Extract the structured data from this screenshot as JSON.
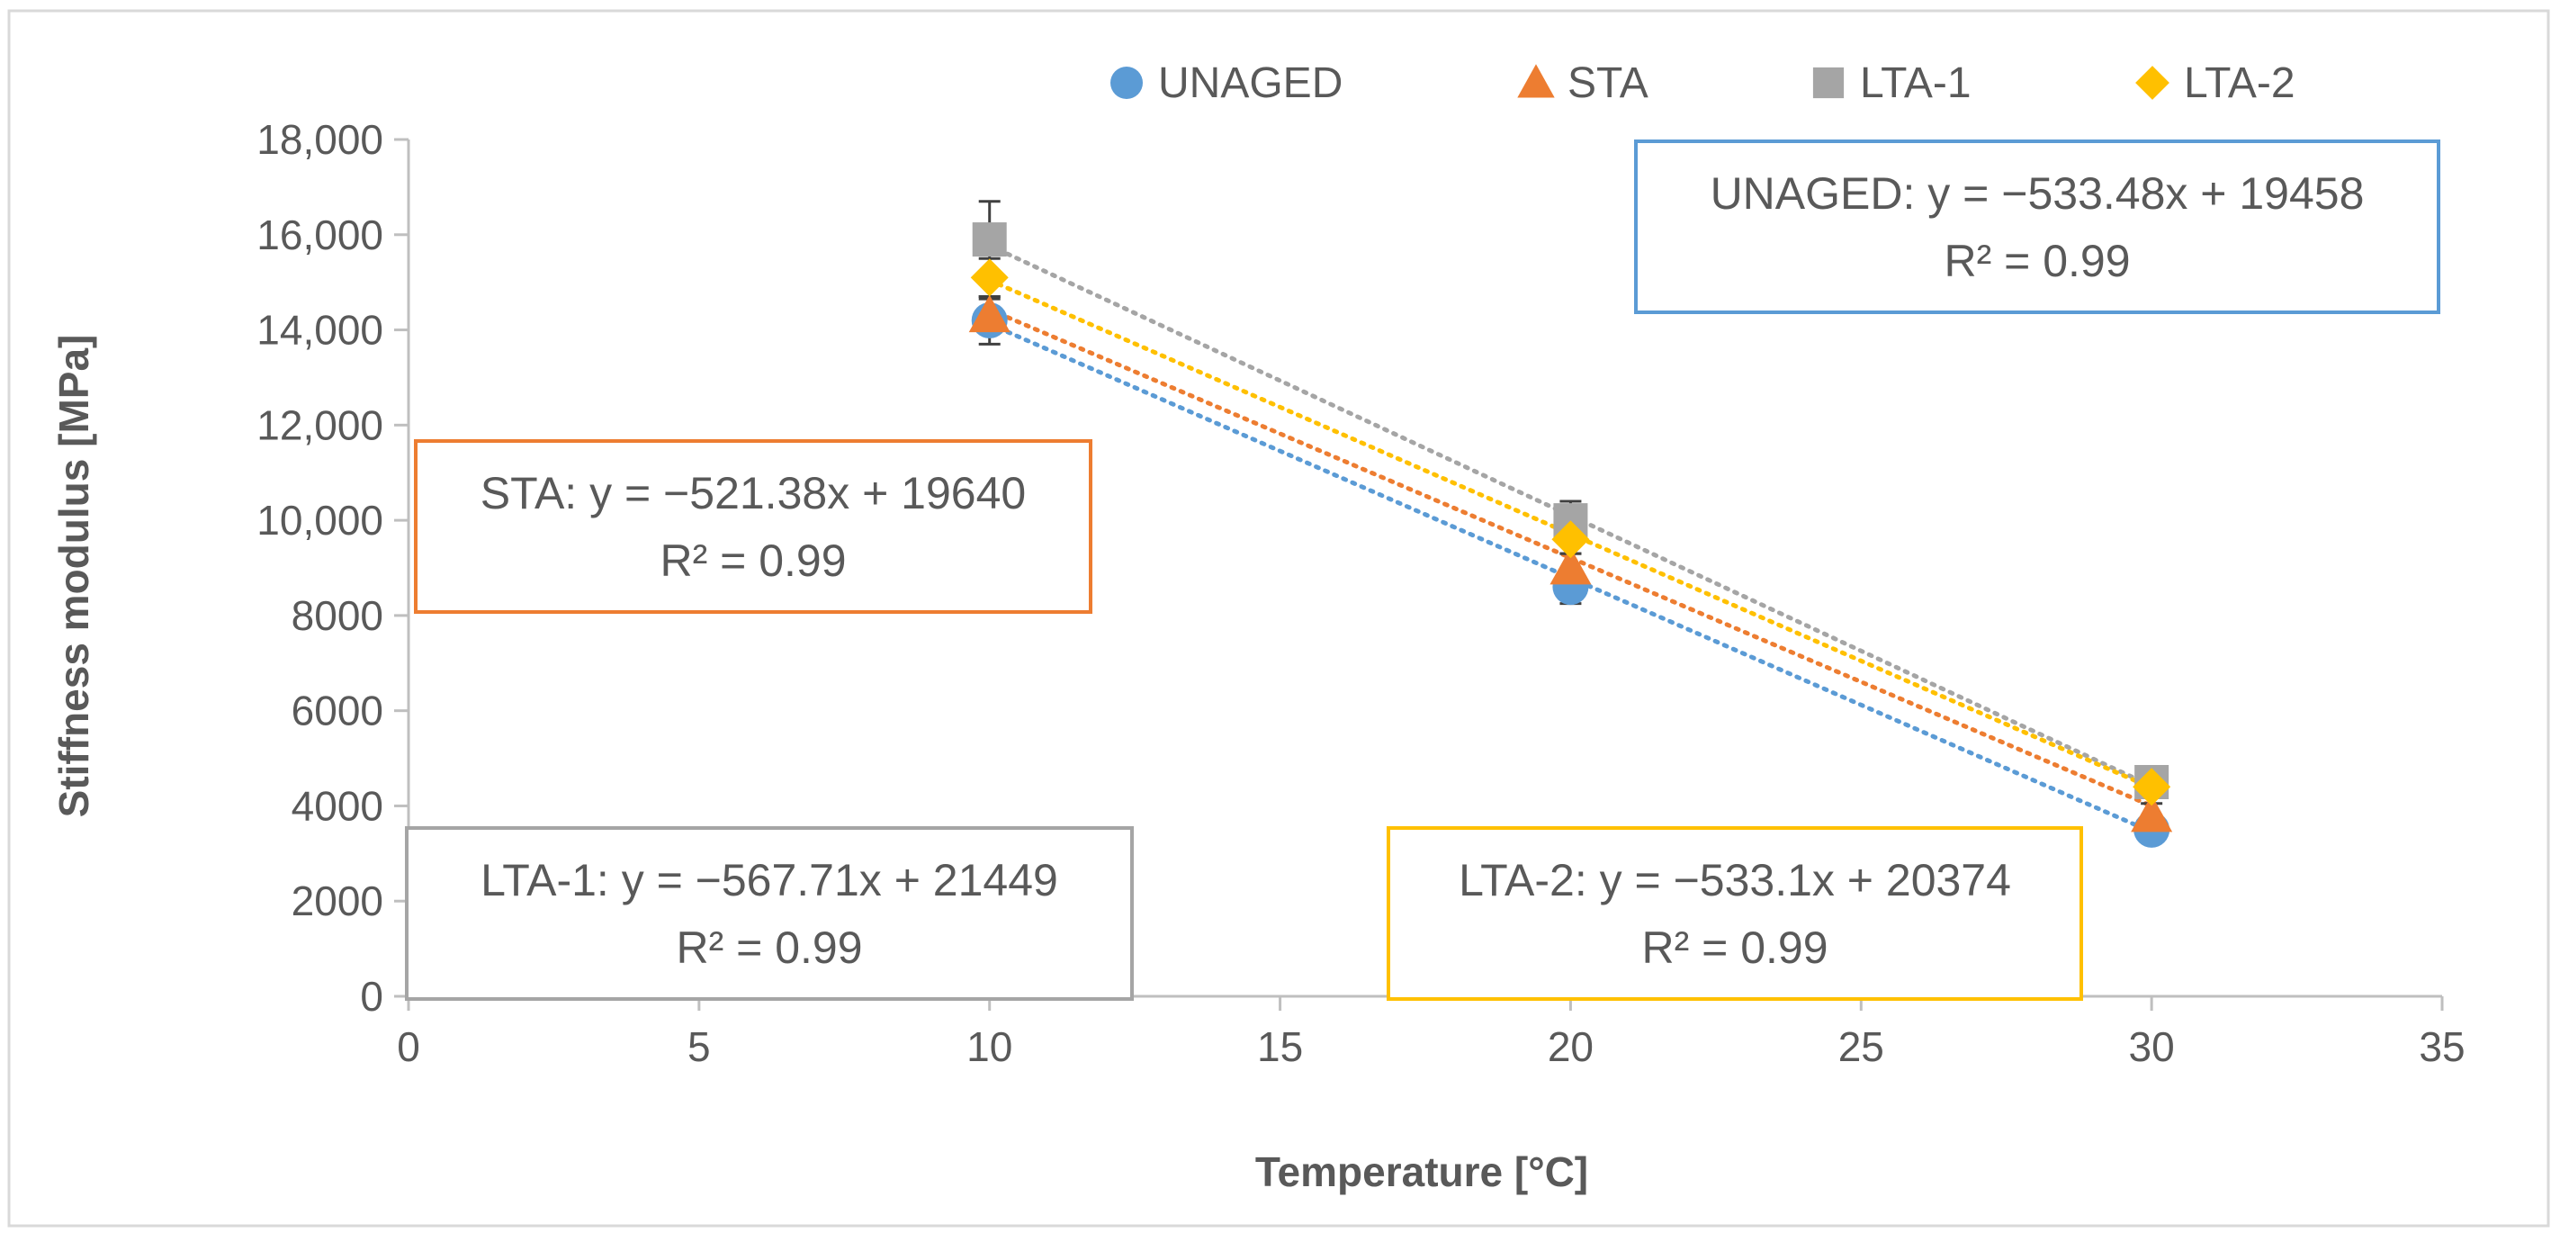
{
  "chart_data": {
    "type": "scatter",
    "title": "",
    "xlabel": "Temperature [°C]",
    "ylabel": "Stiffness modulus [MPa]",
    "xlim": [
      0,
      35
    ],
    "ylim": [
      0,
      18000
    ],
    "x_ticks": [
      0,
      5,
      10,
      15,
      20,
      25,
      30,
      35
    ],
    "x_tick_labels": [
      "0",
      "5",
      "10",
      "15",
      "20",
      "25",
      "30",
      "35"
    ],
    "y_ticks": [
      0,
      2000,
      4000,
      6000,
      8000,
      10000,
      12000,
      14000,
      16000,
      18000
    ],
    "y_tick_labels": [
      "0",
      "2000",
      "4000",
      "6000",
      "8000",
      "10,000",
      "12,000",
      "14,000",
      "16,000",
      "18,000"
    ],
    "grid": false,
    "legend_position": "top",
    "series": [
      {
        "name": "UNAGED",
        "marker": "circle",
        "color": "#5B9BD5",
        "x": [
          10,
          20,
          30
        ],
        "y": [
          14200,
          8600,
          3500
        ],
        "error": [
          500,
          350,
          250
        ],
        "trendline": {
          "slope": -533.48,
          "intercept": 19458
        },
        "equation": "UNAGED: y = −533.48x + 19458",
        "r2": "R² = 0.99"
      },
      {
        "name": "STA",
        "marker": "triangle",
        "color": "#ED7D31",
        "x": [
          10,
          20,
          30
        ],
        "y": [
          14300,
          9000,
          3800
        ],
        "error": [
          350,
          300,
          250
        ],
        "trendline": {
          "slope": -521.38,
          "intercept": 19640
        },
        "equation": "STA: y = −521.38x + 19640",
        "r2": "R² = 0.99"
      },
      {
        "name": "LTA-1",
        "marker": "square",
        "color": "#A5A5A5",
        "x": [
          10,
          20,
          30
        ],
        "y": [
          15900,
          10000,
          4500
        ],
        "error": [
          800,
          400,
          250
        ],
        "trendline": {
          "slope": -567.71,
          "intercept": 21449
        },
        "equation": "LTA-1: y = −567.71x + 21449",
        "r2": "R² = 0.99"
      },
      {
        "name": "LTA-2",
        "marker": "diamond",
        "color": "#FFC000",
        "x": [
          10,
          20,
          30
        ],
        "y": [
          15100,
          9600,
          4400
        ],
        "error": [
          400,
          300,
          200
        ],
        "trendline": {
          "slope": -533.1,
          "intercept": 20374
        },
        "equation": "LTA-2: y = −533.1x + 20374",
        "r2": "R² = 0.99"
      }
    ]
  }
}
